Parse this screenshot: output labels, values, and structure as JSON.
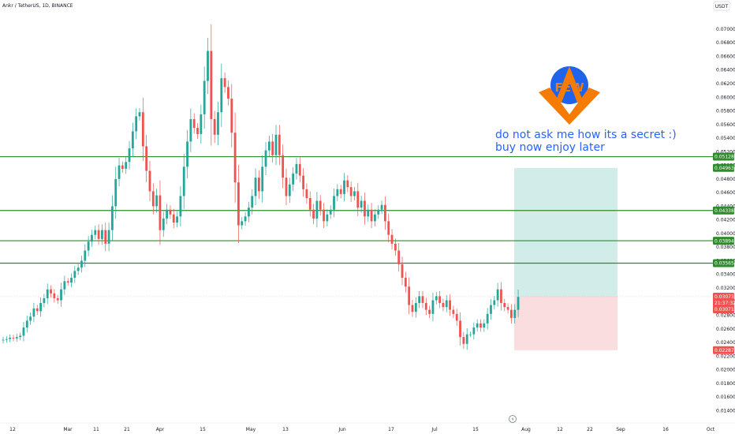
{
  "symbol": "Ankr / TetherUS, 1D, BINANCE",
  "currency": "USDT",
  "annotation": {
    "line1": "do not ask me how its a secret :)",
    "line2": "buy now enjoy later",
    "logo_text": "FEW"
  },
  "colors": {
    "up": "#26a69a",
    "down": "#ef5350",
    "level_line": "#2e8b2e",
    "profit_zone": "#b2dfdb",
    "loss_zone": "#f8cfd2",
    "annotation": "#2962ff",
    "logo_orange": "#f57c00",
    "logo_blue": "#1e63e9"
  },
  "chart_data": {
    "type": "candlestick",
    "ylim": [
      0.013,
      0.0715
    ],
    "y_ticks": [
      "0.07000",
      "0.06800",
      "0.06600",
      "0.06400",
      "0.06200",
      "0.06000",
      "0.05800",
      "0.05600",
      "0.05400",
      "0.05200",
      "0.05000",
      "0.04800",
      "0.04600",
      "0.04400",
      "0.04200",
      "0.04000",
      "0.03800",
      "0.03600",
      "0.03400",
      "0.03200",
      "0.03000",
      "0.02800",
      "0.02600",
      "0.02400",
      "0.02200",
      "0.02000",
      "0.01800",
      "0.01600",
      "0.01400"
    ],
    "x_ticks": [
      "12",
      "Mar",
      "11",
      "21",
      "Apr",
      "15",
      "May",
      "13",
      "Jun",
      "17",
      "Jul",
      "15",
      "Aug",
      "12",
      "22",
      "Sep",
      "16",
      "Oct"
    ],
    "horizontal_levels": [
      0.05128,
      0.04338,
      0.03894,
      0.03565
    ],
    "level_labels": [
      "0.05128",
      "0.04338",
      "0.03894",
      "0.03565"
    ],
    "position": {
      "entry": 0.03073,
      "target": 0.04963,
      "stop": 0.02287,
      "target_label": "0.04963",
      "stop_label": "0.02287",
      "entry_label": "0.03073",
      "countdown": "21:37:32",
      "last_label": "0.03071"
    },
    "closes": [
      0.0244,
      0.0245,
      0.0247,
      0.0246,
      0.0248,
      0.025,
      0.0262,
      0.0272,
      0.0278,
      0.029,
      0.0286,
      0.0298,
      0.0305,
      0.0318,
      0.0312,
      0.0305,
      0.0302,
      0.0318,
      0.033,
      0.0328,
      0.0335,
      0.0345,
      0.035,
      0.036,
      0.0375,
      0.0388,
      0.0398,
      0.0405,
      0.0392,
      0.0405,
      0.0385,
      0.0405,
      0.044,
      0.048,
      0.05,
      0.0495,
      0.0505,
      0.0525,
      0.055,
      0.0572,
      0.0578,
      0.0528,
      0.0492,
      0.0462,
      0.044,
      0.0456,
      0.0405,
      0.0422,
      0.0435,
      0.0428,
      0.0416,
      0.0425,
      0.0455,
      0.0498,
      0.0535,
      0.0568,
      0.0555,
      0.0546,
      0.0575,
      0.0624,
      0.0668,
      0.0568,
      0.0545,
      0.0578,
      0.0628,
      0.0615,
      0.0598,
      0.0548,
      0.0475,
      0.0412,
      0.0418,
      0.0425,
      0.0438,
      0.0455,
      0.0482,
      0.0462,
      0.0498,
      0.0522,
      0.0535,
      0.0515,
      0.0545,
      0.0515,
      0.0482,
      0.0455,
      0.0472,
      0.0488,
      0.0502,
      0.0485,
      0.0465,
      0.0452,
      0.0435,
      0.0422,
      0.0448,
      0.0435,
      0.0418,
      0.0428,
      0.0435,
      0.0455,
      0.0465,
      0.0458,
      0.0478,
      0.0468,
      0.0455,
      0.0462,
      0.0438,
      0.0448,
      0.0425,
      0.0435,
      0.0418,
      0.0428,
      0.0435,
      0.0442,
      0.0418,
      0.0398,
      0.0385,
      0.0375,
      0.0355,
      0.0335,
      0.0322,
      0.0295,
      0.0285,
      0.0298,
      0.0308,
      0.0298,
      0.0288,
      0.0282,
      0.0302,
      0.0308,
      0.0298,
      0.0292,
      0.0302,
      0.0288,
      0.0282,
      0.0272,
      0.0248,
      0.0238,
      0.0252,
      0.0252,
      0.0262,
      0.0268,
      0.0262,
      0.0268,
      0.0282,
      0.0295,
      0.0302,
      0.0318,
      0.0298,
      0.0292,
      0.0288,
      0.0276,
      0.0288,
      0.0307
    ]
  }
}
